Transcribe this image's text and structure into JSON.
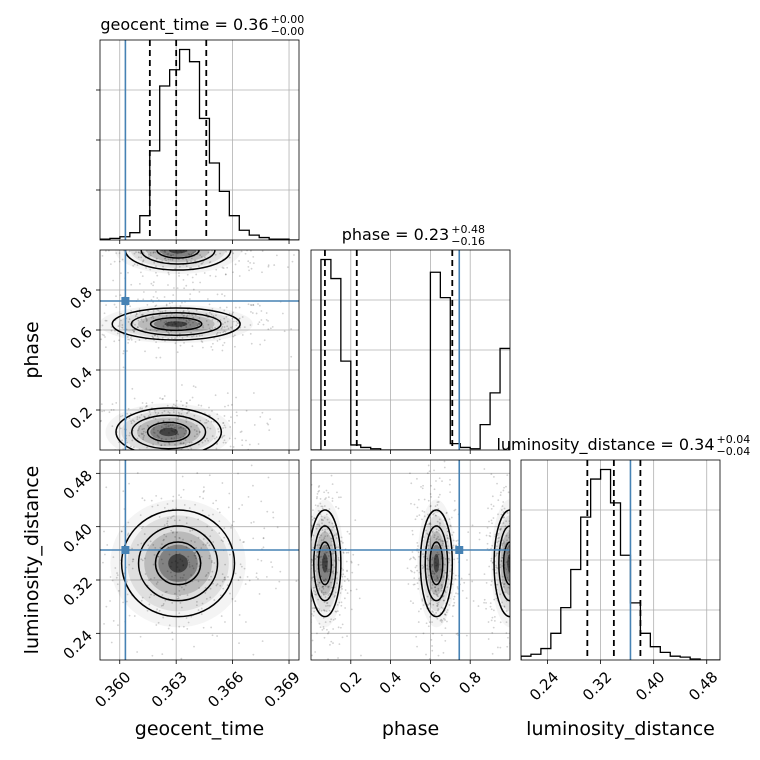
{
  "chart_data": {
    "type": "corner",
    "parameters": [
      {
        "name": "geocent_time",
        "title": {
          "label": "geocent_time = 0.36",
          "sup": "+0.00",
          "sub": "−0.00"
        },
        "ticks": [
          0.36,
          0.363,
          0.366,
          0.369
        ],
        "tick_labels": [
          "0.360",
          "0.363",
          "0.366",
          "0.369"
        ],
        "range": [
          0.35895,
          0.36953
        ],
        "truth": 0.3603,
        "quantiles": [
          0.3616,
          0.363,
          0.3646
        ]
      },
      {
        "name": "phase",
        "title": {
          "label": "phase = 0.23",
          "sup": "+0.48",
          "sub": "−0.16"
        },
        "ticks": [
          0.2,
          0.4,
          0.6,
          0.8
        ],
        "tick_labels": [
          "0.2",
          "0.4",
          "0.6",
          "0.8"
        ],
        "range": [
          0.0,
          1.0
        ],
        "truth": 0.745,
        "quantiles": [
          0.07,
          0.23,
          0.71
        ]
      },
      {
        "name": "luminosity_distance",
        "title": {
          "label": "luminosity_distance = 0.34",
          "sup": "+0.04",
          "sub": "−0.04"
        },
        "ticks": [
          0.24,
          0.32,
          0.4,
          0.48
        ],
        "tick_labels": [
          "0.24",
          "0.32",
          "0.40",
          "0.48"
        ],
        "range": [
          0.2,
          0.5
        ],
        "truth": 0.365,
        "quantiles": [
          0.3,
          0.34,
          0.38
        ]
      }
    ],
    "histograms": [
      {
        "bins": 20,
        "heights": [
          1,
          2,
          4,
          9,
          30,
          110,
          190,
          210,
          235,
          220,
          150,
          95,
          60,
          30,
          12,
          6,
          3,
          1,
          1,
          0
        ]
      },
      {
        "bins": 20,
        "heights": [
          0,
          150,
          135,
          70,
          4,
          2,
          1,
          0,
          0,
          0,
          0,
          0,
          140,
          120,
          5,
          2,
          1,
          20,
          45,
          80
        ]
      },
      {
        "bins": 20,
        "heights": [
          4,
          6,
          12,
          28,
          55,
          95,
          150,
          190,
          200,
          165,
          110,
          60,
          28,
          14,
          8,
          4,
          3,
          1,
          0,
          0
        ]
      }
    ],
    "blobs_2d": {
      "geocent_time_vs_phase": [
        {
          "cx": 0.363,
          "cy": 0.63,
          "sx": 0.0017,
          "sy": 0.04
        },
        {
          "cx": 0.3626,
          "cy": 0.09,
          "sx": 0.0014,
          "sy": 0.06
        },
        {
          "cx": 0.3631,
          "cy": 1.0,
          "sx": 0.0014,
          "sy": 0.05
        }
      ],
      "geocent_time_vs_luminosity_distance": [
        {
          "cx": 0.3631,
          "cy": 0.345,
          "sx": 0.0015,
          "sy": 0.04
        }
      ],
      "phase_vs_luminosity_distance": [
        {
          "cx": 0.07,
          "cy": 0.345,
          "sx": 0.04,
          "sy": 0.04
        },
        {
          "cx": 0.63,
          "cy": 0.345,
          "sx": 0.04,
          "sy": 0.04
        },
        {
          "cx": 1.0,
          "cy": 0.345,
          "sx": 0.04,
          "sy": 0.04
        }
      ]
    },
    "axis_labels": {
      "x": [
        "geocent_time",
        "phase",
        "luminosity_distance"
      ],
      "y": [
        "phase",
        "luminosity_distance"
      ]
    },
    "truth_color": "#4682b4",
    "grid": true
  }
}
